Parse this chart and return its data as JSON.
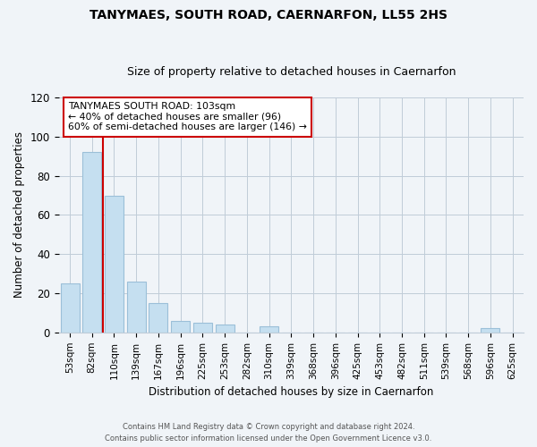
{
  "title": "TANYMAES, SOUTH ROAD, CAERNARFON, LL55 2HS",
  "subtitle": "Size of property relative to detached houses in Caernarfon",
  "xlabel": "Distribution of detached houses by size in Caernarfon",
  "ylabel": "Number of detached properties",
  "bar_labels": [
    "53sqm",
    "82sqm",
    "110sqm",
    "139sqm",
    "167sqm",
    "196sqm",
    "225sqm",
    "253sqm",
    "282sqm",
    "310sqm",
    "339sqm",
    "368sqm",
    "396sqm",
    "425sqm",
    "453sqm",
    "482sqm",
    "511sqm",
    "539sqm",
    "568sqm",
    "596sqm",
    "625sqm"
  ],
  "bar_values": [
    25,
    92,
    70,
    26,
    15,
    6,
    5,
    4,
    0,
    3,
    0,
    0,
    0,
    0,
    0,
    0,
    0,
    0,
    0,
    2,
    0
  ],
  "bar_color": "#c5dff0",
  "bar_edge_color": "#9bbfd8",
  "vline_color": "#cc0000",
  "ylim": [
    0,
    120
  ],
  "yticks": [
    0,
    20,
    40,
    60,
    80,
    100,
    120
  ],
  "annotation_title": "TANYMAES SOUTH ROAD: 103sqm",
  "annotation_line1": "← 40% of detached houses are smaller (96)",
  "annotation_line2": "60% of semi-detached houses are larger (146) →",
  "annotation_box_color": "white",
  "annotation_box_edge": "#cc0000",
  "footer1": "Contains HM Land Registry data © Crown copyright and database right 2024.",
  "footer2": "Contains public sector information licensed under the Open Government Licence v3.0.",
  "bg_color": "#f0f4f8",
  "grid_color": "#c0ccd8",
  "title_fontsize": 10,
  "subtitle_fontsize": 9
}
